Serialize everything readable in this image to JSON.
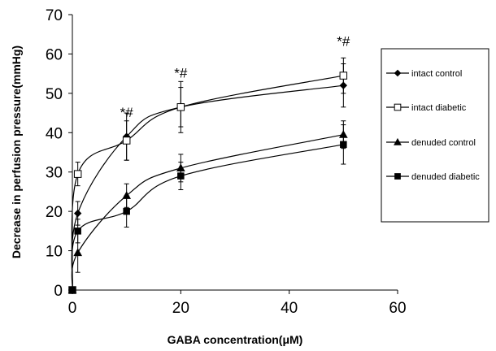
{
  "chart_data": {
    "type": "line",
    "xlabel": "GABA concentration(μM)",
    "ylabel": "Decrease in perfusion pressure(mmHg)",
    "xlim": [
      0,
      60
    ],
    "ylim": [
      0,
      70
    ],
    "xticks": [
      "0",
      "20",
      "40",
      "60"
    ],
    "yticks": [
      "0",
      "10",
      "20",
      "30",
      "40",
      "50",
      "60",
      "70"
    ],
    "grid": false,
    "legend_position": "right",
    "x": [
      0,
      1,
      10,
      20,
      50
    ],
    "series": [
      {
        "name": "intact control",
        "marker": "filled-diamond",
        "values": [
          0,
          19.5,
          39,
          46.5,
          52
        ],
        "errors": [
          0,
          3,
          6,
          6.5,
          5.5
        ]
      },
      {
        "name": "intact diabetic",
        "marker": "open-square",
        "values": [
          0,
          29.5,
          38,
          46.5,
          54.5
        ],
        "errors": [
          0,
          3,
          5,
          5,
          4.5
        ]
      },
      {
        "name": "denuded control",
        "marker": "filled-triangle",
        "values": [
          0,
          9.5,
          24,
          31,
          39.5
        ],
        "errors": [
          0,
          5,
          3,
          3.5,
          3.5
        ]
      },
      {
        "name": "denuded diabetic",
        "marker": "filled-square",
        "values": [
          0,
          15,
          20,
          29,
          37
        ],
        "errors": [
          0,
          3,
          4,
          3.5,
          5
        ]
      }
    ],
    "annotations": [
      {
        "text": "*#",
        "x": 10,
        "y": 44
      },
      {
        "text": "*#",
        "x": 20,
        "y": 54
      },
      {
        "text": "*#",
        "x": 50,
        "y": 62
      }
    ],
    "colors": {
      "line": "#000000",
      "open_marker_fill": "#ffffff"
    }
  }
}
